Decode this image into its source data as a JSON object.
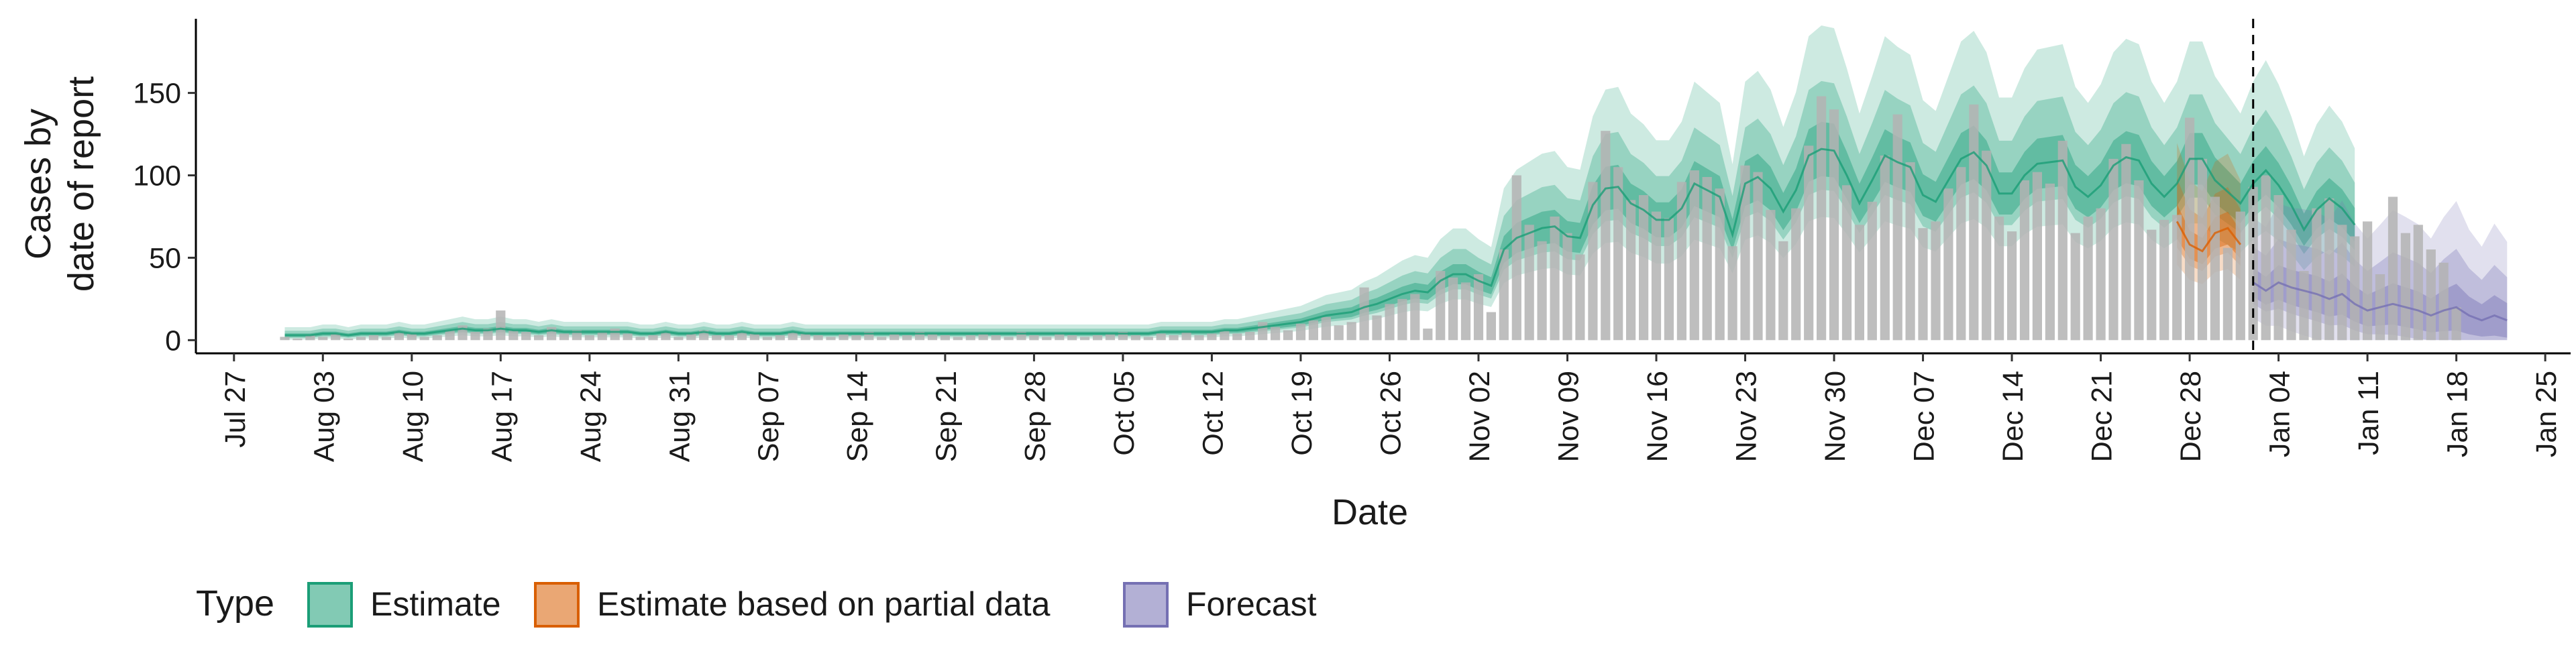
{
  "chart_data": {
    "type": "area",
    "title": "",
    "xlabel": "Date",
    "ylabel_lines": [
      "Cases by",
      "date of report"
    ],
    "ylim": [
      -8,
      195
    ],
    "yticks": [
      0,
      50,
      100,
      150
    ],
    "x_range": [
      "2020-07-24",
      "2021-01-27"
    ],
    "xticks": [
      {
        "date": "2020-07-27",
        "label": "Jul 27"
      },
      {
        "date": "2020-08-03",
        "label": "Aug 03"
      },
      {
        "date": "2020-08-10",
        "label": "Aug 10"
      },
      {
        "date": "2020-08-17",
        "label": "Aug 17"
      },
      {
        "date": "2020-08-24",
        "label": "Aug 24"
      },
      {
        "date": "2020-08-31",
        "label": "Aug 31"
      },
      {
        "date": "2020-09-07",
        "label": "Sep 07"
      },
      {
        "date": "2020-09-14",
        "label": "Sep 14"
      },
      {
        "date": "2020-09-21",
        "label": "Sep 21"
      },
      {
        "date": "2020-09-28",
        "label": "Sep 28"
      },
      {
        "date": "2020-10-05",
        "label": "Oct 05"
      },
      {
        "date": "2020-10-12",
        "label": "Oct 12"
      },
      {
        "date": "2020-10-19",
        "label": "Oct 19"
      },
      {
        "date": "2020-10-26",
        "label": "Oct 26"
      },
      {
        "date": "2020-11-02",
        "label": "Nov 02"
      },
      {
        "date": "2020-11-09",
        "label": "Nov 09"
      },
      {
        "date": "2020-11-16",
        "label": "Nov 16"
      },
      {
        "date": "2020-11-23",
        "label": "Nov 23"
      },
      {
        "date": "2020-11-30",
        "label": "Nov 30"
      },
      {
        "date": "2020-12-07",
        "label": "Dec 07"
      },
      {
        "date": "2020-12-14",
        "label": "Dec 14"
      },
      {
        "date": "2020-12-21",
        "label": "Dec 21"
      },
      {
        "date": "2020-12-28",
        "label": "Dec 28"
      },
      {
        "date": "2021-01-04",
        "label": "Jan 04"
      },
      {
        "date": "2021-01-11",
        "label": "Jan 11"
      },
      {
        "date": "2021-01-18",
        "label": "Jan 18"
      },
      {
        "date": "2021-01-25",
        "label": "Jan 25"
      }
    ],
    "forecast_start_date": "2021-01-02",
    "legend": {
      "title": "Type",
      "position": "bottom",
      "items": [
        {
          "label": "Estimate",
          "fill": "#1b9e77",
          "stroke": "#1b9e77"
        },
        {
          "label": "Estimate based on partial data",
          "fill": "#d95f02",
          "stroke": "#d95f02"
        },
        {
          "label": "Forecast",
          "fill": "#7570b3",
          "stroke": "#7570b3"
        }
      ]
    },
    "bar_color": "#b3b3b3",
    "observed_cases": {
      "start_date": "2020-07-31",
      "values": [
        2,
        1,
        3,
        2,
        4,
        1,
        2,
        3,
        2,
        5,
        4,
        2,
        3,
        6,
        9,
        5,
        7,
        18,
        6,
        5,
        3,
        8,
        4,
        6,
        3,
        5,
        7,
        4,
        2,
        3,
        5,
        2,
        4,
        6,
        3,
        3,
        5,
        4,
        2,
        3,
        5,
        4,
        3,
        2,
        4,
        3,
        5,
        2,
        4,
        3,
        5,
        4,
        3,
        2,
        3,
        4,
        3,
        2,
        5,
        3,
        2,
        4,
        3,
        2,
        3,
        4,
        5,
        3,
        2,
        4,
        3,
        5,
        3,
        4,
        6,
        4,
        5,
        11,
        8,
        6,
        10,
        12,
        14,
        9,
        11,
        32,
        15,
        22,
        25,
        28,
        7,
        42,
        38,
        35,
        40,
        17,
        55,
        100,
        70,
        60,
        75,
        65,
        52,
        96,
        127,
        105,
        85,
        88,
        78,
        74,
        96,
        103,
        99,
        92,
        57,
        106,
        102,
        79,
        60,
        80,
        118,
        148,
        140,
        94,
        70,
        84,
        112,
        137,
        108,
        68,
        72,
        92,
        105,
        143,
        115,
        75,
        66,
        97,
        102,
        95,
        121,
        65,
        75,
        80,
        110,
        119,
        97,
        67,
        73,
        76,
        135,
        110,
        87,
        56,
        78,
        93,
        100,
        88,
        67,
        42,
        80,
        86,
        70,
        63,
        72,
        40,
        87,
        65,
        70,
        55,
        47,
        20
      ]
    },
    "estimate": {
      "start_date": "2020-07-31",
      "end_date": "2020-12-26",
      "median": [
        3,
        3,
        3,
        4,
        4,
        3,
        4,
        4,
        4,
        5,
        4,
        4,
        5,
        6,
        7,
        6,
        6,
        7,
        6,
        6,
        5,
        6,
        5,
        5,
        5,
        5,
        5,
        5,
        4,
        4,
        5,
        4,
        4,
        5,
        4,
        4,
        5,
        4,
        4,
        4,
        5,
        4,
        4,
        4,
        4,
        4,
        4,
        4,
        4,
        4,
        4,
        4,
        4,
        4,
        4,
        4,
        4,
        4,
        4,
        4,
        4,
        4,
        4,
        4,
        4,
        4,
        4,
        4,
        4,
        5,
        5,
        5,
        5,
        5,
        6,
        6,
        7,
        8,
        9,
        10,
        11,
        13,
        15,
        16,
        17,
        20,
        22,
        25,
        28,
        30,
        29,
        36,
        40,
        40,
        36,
        33,
        55,
        62,
        65,
        68,
        69,
        63,
        62,
        82,
        92,
        93,
        83,
        79,
        73,
        73,
        80,
        95,
        91,
        87,
        64,
        95,
        99,
        92,
        78,
        91,
        112,
        116,
        115,
        100,
        83,
        97,
        112,
        108,
        105,
        88,
        84,
        97,
        110,
        114,
        106,
        89,
        89,
        100,
        107,
        108,
        109,
        93,
        87,
        94,
        106,
        111,
        109,
        95,
        87,
        95,
        110,
        110,
        97,
        90,
        83,
        95,
        103,
        94,
        82,
        67,
        79,
        86,
        80,
        70
      ]
    },
    "estimate_partial": {
      "start_date": "2020-12-27",
      "end_date": "2021-01-01",
      "median": [
        72,
        58,
        54,
        65,
        68,
        58
      ]
    },
    "forecast": {
      "start_date": "2021-01-02",
      "end_date": "2021-01-22",
      "median": [
        35,
        30,
        35,
        32,
        30,
        28,
        25,
        28,
        22,
        18,
        20,
        22,
        20,
        18,
        15,
        18,
        20,
        15,
        12,
        15,
        12
      ]
    }
  }
}
